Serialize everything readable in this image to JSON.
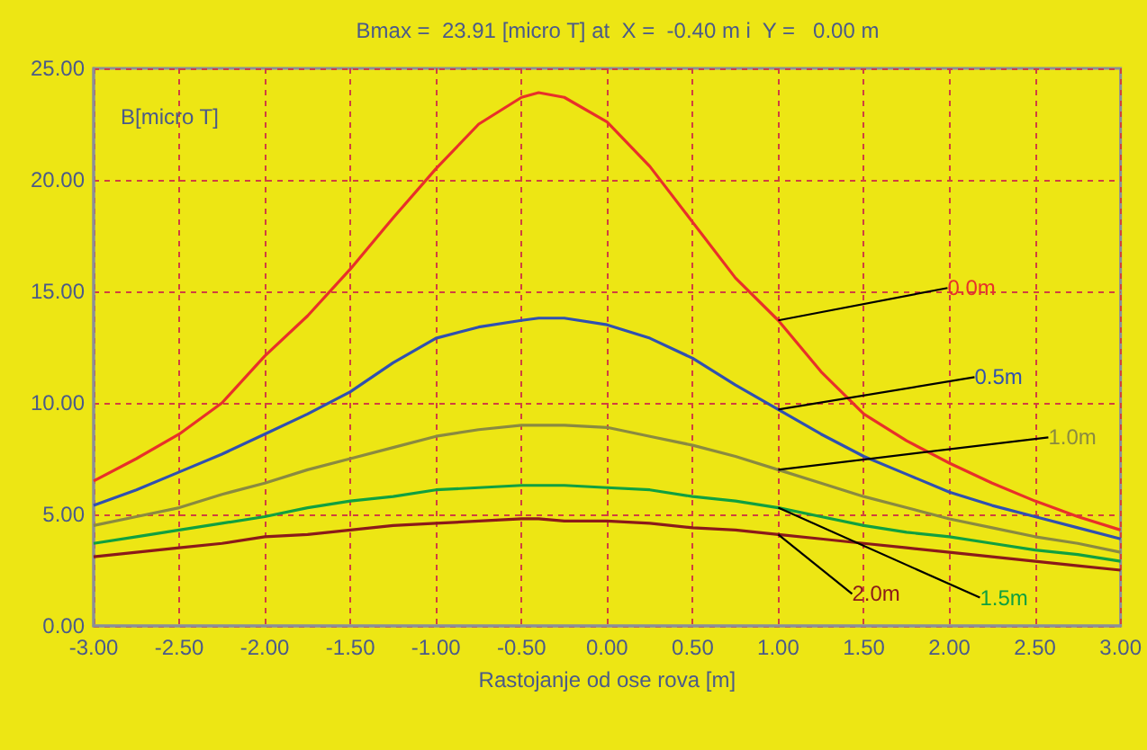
{
  "chart_data": {
    "type": "line",
    "title": "Bmax =  23.91 [micro T] at  X =  -0.40 m i  Y =   0.00 m",
    "xlabel": "Rastojanje od ose rova [m]",
    "ylabel": "B[micro T]",
    "x": [
      -3,
      -2.75,
      -2.5,
      -2.25,
      -2,
      -1.75,
      -1.5,
      -1.25,
      -1,
      -0.75,
      -0.5,
      -0.4,
      -0.25,
      0,
      0.25,
      0.5,
      0.75,
      1,
      1.25,
      1.5,
      1.75,
      2,
      2.25,
      2.5,
      2.75,
      3
    ],
    "series": [
      {
        "name": "0.0m",
        "color": "#e8302a",
        "values": [
          6.5,
          7.5,
          8.6,
          10.0,
          12.1,
          13.9,
          16.0,
          18.3,
          20.5,
          22.5,
          23.7,
          23.91,
          23.7,
          22.6,
          20.6,
          18.1,
          15.6,
          13.7,
          11.4,
          9.5,
          8.3,
          7.3,
          6.4,
          5.6,
          4.9,
          4.3
        ]
      },
      {
        "name": "0.5m",
        "color": "#3050b0",
        "values": [
          5.4,
          6.1,
          6.9,
          7.7,
          8.6,
          9.5,
          10.5,
          11.8,
          12.9,
          13.4,
          13.7,
          13.8,
          13.8,
          13.5,
          12.9,
          12.0,
          10.8,
          9.7,
          8.6,
          7.6,
          6.8,
          6.0,
          5.4,
          4.9,
          4.4,
          3.9
        ]
      },
      {
        "name": "1.0m",
        "color": "#8a8a40",
        "values": [
          4.5,
          4.9,
          5.3,
          5.9,
          6.4,
          7.0,
          7.5,
          8.0,
          8.5,
          8.8,
          9.0,
          9.0,
          9.0,
          8.9,
          8.5,
          8.1,
          7.6,
          7.0,
          6.4,
          5.8,
          5.3,
          4.8,
          4.4,
          4.0,
          3.7,
          3.3
        ]
      },
      {
        "name": "1.5m",
        "color": "#10a040",
        "values": [
          3.7,
          4.0,
          4.3,
          4.6,
          4.9,
          5.3,
          5.6,
          5.8,
          6.1,
          6.2,
          6.3,
          6.3,
          6.3,
          6.2,
          6.1,
          5.8,
          5.6,
          5.3,
          4.9,
          4.5,
          4.2,
          4.0,
          3.7,
          3.4,
          3.2,
          2.9
        ]
      },
      {
        "name": "2.0m",
        "color": "#8b1a1a",
        "values": [
          3.1,
          3.3,
          3.5,
          3.7,
          4.0,
          4.1,
          4.3,
          4.5,
          4.6,
          4.7,
          4.8,
          4.8,
          4.7,
          4.7,
          4.6,
          4.4,
          4.3,
          4.1,
          3.9,
          3.7,
          3.5,
          3.3,
          3.1,
          2.9,
          2.7,
          2.5
        ]
      }
    ],
    "xlim": [
      -3,
      3
    ],
    "xticks": [
      {
        "value": -3,
        "label": "-3.00"
      },
      {
        "value": -2.5,
        "label": "-2.50"
      },
      {
        "value": -2,
        "label": "-2.00"
      },
      {
        "value": -1.5,
        "label": "-1.50"
      },
      {
        "value": -1,
        "label": "-1.00"
      },
      {
        "value": -0.5,
        "label": "-0.50"
      },
      {
        "value": 0,
        "label": "0.00"
      },
      {
        "value": 0.5,
        "label": "0.50"
      },
      {
        "value": 1,
        "label": "1.00"
      },
      {
        "value": 1.5,
        "label": "1.50"
      },
      {
        "value": 2,
        "label": "2.00"
      },
      {
        "value": 2.5,
        "label": "2.50"
      },
      {
        "value": 3,
        "label": "3.00"
      }
    ],
    "ylim": [
      0,
      25
    ],
    "yticks": [
      {
        "value": 0,
        "label": "0.00"
      },
      {
        "value": 5,
        "label": "5.00"
      },
      {
        "value": 10,
        "label": "10.00"
      },
      {
        "value": 15,
        "label": "15.00"
      },
      {
        "value": 20,
        "label": "20.00"
      },
      {
        "value": 25,
        "label": "25.00"
      }
    ],
    "grid": true,
    "legend": false,
    "marker": "none",
    "line_style": "solid"
  }
}
